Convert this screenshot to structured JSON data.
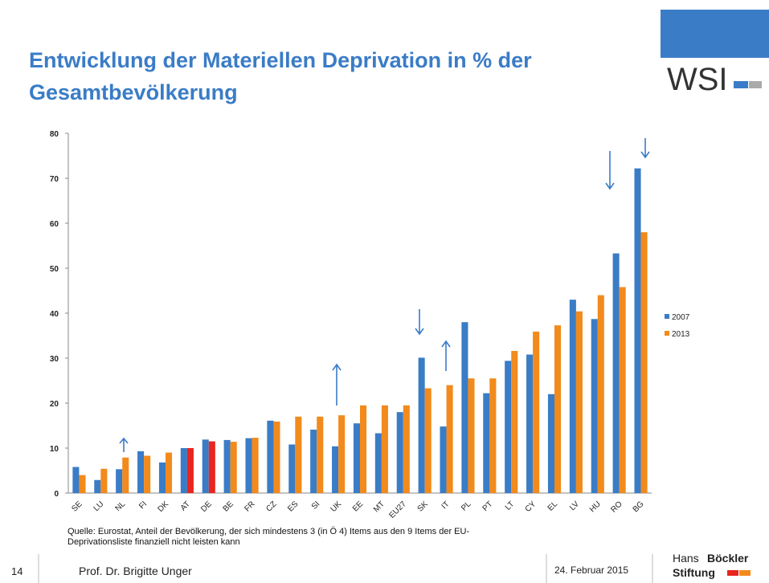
{
  "title": [
    "Entwicklung  der Materiellen  Deprivation  in % der",
    "Gesamtbevölkerung"
  ],
  "logo": "WSI",
  "chart_data": {
    "type": "bar",
    "categories": [
      "SE",
      "LU",
      "NL",
      "FI",
      "DK",
      "AT",
      "DE",
      "BE",
      "FR",
      "CZ",
      "ES",
      "SI",
      "UK",
      "EE",
      "MT",
      "EU27",
      "SK",
      "IT",
      "PL",
      "PT",
      "LT",
      "CY",
      "EL",
      "LV",
      "HU",
      "RO",
      "BG"
    ],
    "series": [
      {
        "name": "2007",
        "color": "#3a7cc6",
        "values": [
          5.8,
          2.9,
          5.3,
          9.3,
          6.8,
          10.0,
          11.9,
          11.8,
          12.2,
          16.1,
          10.8,
          14.1,
          10.4,
          15.5,
          13.3,
          18.0,
          30.1,
          14.8,
          38.0,
          22.2,
          29.4,
          30.8,
          22.0,
          43.0,
          38.7,
          53.3,
          72.2
        ]
      },
      {
        "name": "2013",
        "color": "#f28a1c",
        "colors": [
          "#f28a1c",
          "#f28a1c",
          "#f28a1c",
          "#f28a1c",
          "#f28a1c",
          "#e8251f",
          "#e8251f",
          "#f28a1c",
          "#f28a1c",
          "#f28a1c",
          "#f28a1c",
          "#f28a1c",
          "#f28a1c",
          "#f28a1c",
          "#f28a1c",
          "#f28a1c",
          "#f28a1c",
          "#f28a1c",
          "#f28a1c",
          "#f28a1c",
          "#f28a1c",
          "#f28a1c",
          "#f28a1c",
          "#f28a1c",
          "#f28a1c",
          "#f28a1c",
          "#f28a1c"
        ],
        "values": [
          4.0,
          5.4,
          7.9,
          8.3,
          9.0,
          10.0,
          11.5,
          11.4,
          12.3,
          15.9,
          17.0,
          17.0,
          17.3,
          19.5,
          19.5,
          19.5,
          23.3,
          24.0,
          25.5,
          25.5,
          31.6,
          35.9,
          37.3,
          40.4,
          44.0,
          45.8,
          58.0
        ]
      }
    ],
    "ylim": [
      0,
      80
    ],
    "yticks": [
      0,
      10,
      20,
      30,
      40,
      50,
      60,
      70,
      80
    ],
    "legend": "right"
  },
  "source": [
    "Quelle: Eurostat, Anteil der Bevölkerung,  der sich mindestens  3 (in Ö 4) Items aus den 9 Items der EU-",
    "Deprivationsliste  finanziell nicht leisten kann"
  ],
  "footer": {
    "page": "14",
    "author": "Prof. Dr. Brigitte Unger",
    "date": "24. Februar 2015",
    "org": [
      "Hans",
      "Böckler",
      "Stiftung"
    ]
  }
}
